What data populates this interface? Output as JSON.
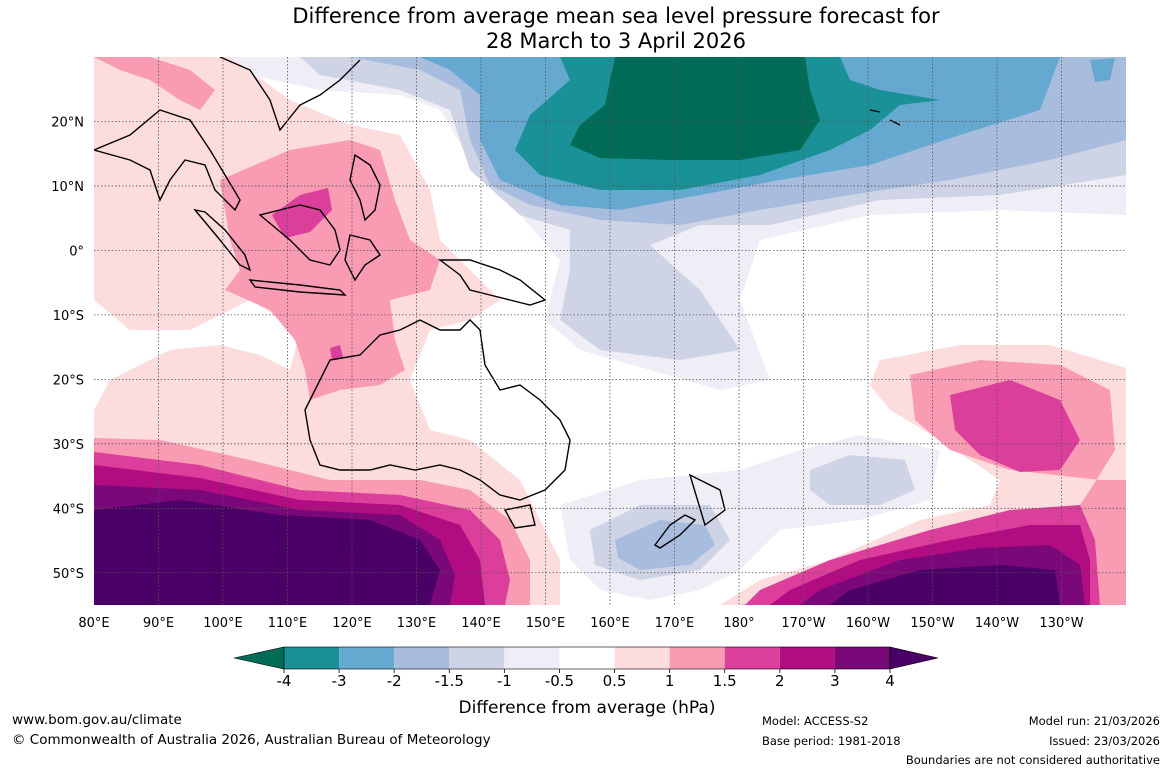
{
  "title": {
    "line1": "Difference from average mean sea level pressure forecast for",
    "line2": "28 March to 3 April 2026"
  },
  "map": {
    "lat_labels": [
      "20°N",
      "10°N",
      "0°",
      "10°S",
      "20°S",
      "30°S",
      "40°S",
      "50°S"
    ],
    "lon_labels": [
      "80°E",
      "90°E",
      "100°E",
      "110°E",
      "120°E",
      "130°E",
      "140°E",
      "150°E",
      "160°E",
      "170°E",
      "180°",
      "170°W",
      "160°W",
      "150°W",
      "140°W",
      "130°W"
    ],
    "lat_values": [
      20,
      10,
      0,
      -10,
      -20,
      -30,
      -40,
      -50
    ],
    "lon_values": [
      80,
      90,
      100,
      110,
      120,
      130,
      140,
      150,
      160,
      170,
      180,
      190,
      200,
      210,
      220,
      230
    ],
    "extent": {
      "lon_min": 80,
      "lon_max": 240,
      "lat_min": -55,
      "lat_max": 30
    }
  },
  "colorbar": {
    "title": "Difference from average (hPa)",
    "tick_labels": [
      "-4",
      "-3",
      "-2",
      "-1.5",
      "-1",
      "-0.5",
      "0.5",
      "1",
      "1.5",
      "2",
      "3",
      "4"
    ],
    "colors": {
      "lt_-4": "#006b57",
      "-4_-3": "#1a9097",
      "-3_-2": "#66a9d0",
      "-2_-1.5": "#a8bddd",
      "-1.5_-1": "#cfd3e6",
      "-1_-0.5": "#efeef6",
      "-0.5_0.5": "#ffffff",
      "0.5_1": "#fddcdd",
      "1_1.5": "#f89bb3",
      "1.5_2": "#dc3f9b",
      "2_3": "#b10c82",
      "3_4": "#7b0878",
      "gt_4": "#4a0066"
    }
  },
  "footer": {
    "url": "www.bom.gov.au/climate",
    "copyright": "© Commonwealth of Australia 2026, Australian Bureau of Meteorology",
    "model": "Model: ACCESS-S2",
    "base_period": "Base period: 1981-2018",
    "model_run": "Model run: 21/03/2026",
    "issued": "Issued: 23/03/2026",
    "disclaimer": "Boundaries are not considered authoritative"
  }
}
